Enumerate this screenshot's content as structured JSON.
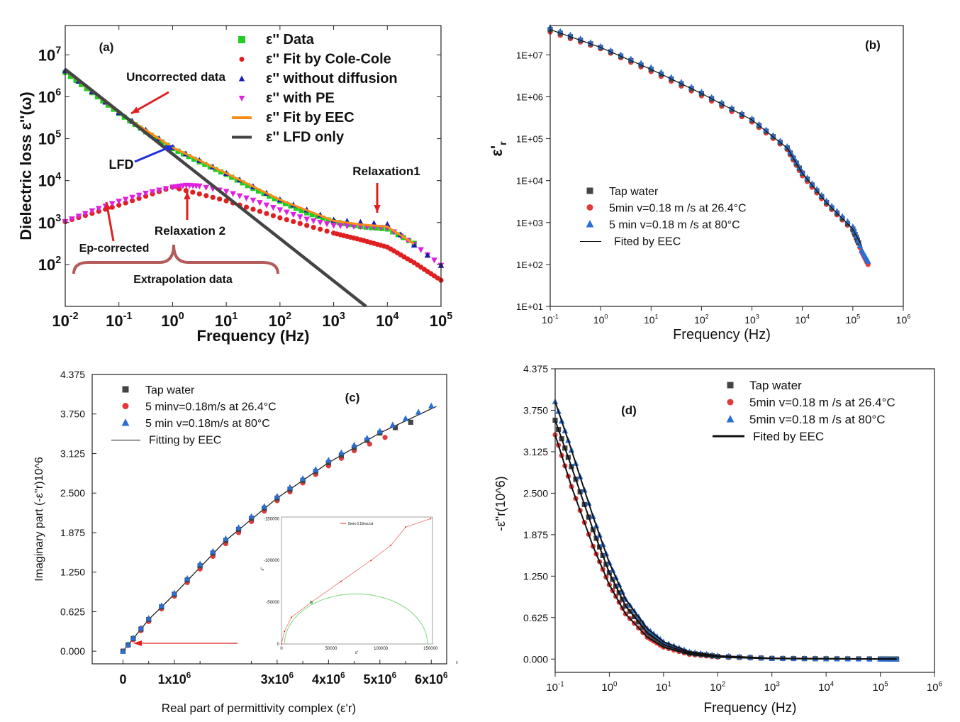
{
  "chart_data": [
    {
      "panel": "(a)",
      "type": "scatter",
      "xscale": "log",
      "yscale": "log",
      "xlim": [
        0.01,
        100000
      ],
      "ylim": [
        10,
        50000000
      ],
      "xlabel": "Frequency (Hz)",
      "ylabel": "Dielectric loss ε''(ω)",
      "xticks": [
        "10-2",
        "10-1",
        "100",
        "101",
        "102",
        "103",
        "104",
        "105"
      ],
      "yticks": [
        "102",
        "103",
        "104",
        "105",
        "106",
        "107"
      ],
      "legend": [
        "ε''  Data",
        "ε''  Fit by Cole-Cole",
        "ε''  without diffusion",
        "ε''  with PE",
        "ε''  Fit by EEC",
        "ε''  LFD only"
      ],
      "annotations": [
        "Uncorrected data",
        "LFD",
        "Relaxation1",
        "Relaxation 2",
        "Ep-corrected",
        "Extrapolation data"
      ],
      "series": [
        {
          "name": "ε''  Data",
          "color": "#22cc22",
          "marker": "square",
          "x": [
            0.01,
            0.0316,
            0.1,
            0.316,
            1,
            3.16,
            10,
            31.6,
            100,
            316,
            1000,
            3162,
            10000,
            31623
          ],
          "y": [
            3800000,
            1250000,
            400000,
            145000,
            58000,
            28000,
            14000,
            6500,
            3200,
            1700,
            1050,
            800,
            700,
            320
          ]
        },
        {
          "name": "ε''  Fit by Cole-Cole",
          "color": "#e02020",
          "marker": "circle",
          "x": [
            0.01,
            0.1,
            1,
            10,
            100,
            1000,
            3162,
            10000,
            31623,
            100000
          ],
          "y": [
            1050,
            2600,
            7000,
            3300,
            1300,
            560,
            390,
            260,
            110,
            42
          ]
        },
        {
          "name": "ε''  without diffusion",
          "color": "#1a1ab0",
          "marker": "triangle",
          "x": [
            0.01,
            0.1,
            1,
            10,
            100,
            1000,
            10000,
            100000
          ],
          "y": [
            4200000,
            420000,
            62000,
            15000,
            3500,
            1150,
            900,
            95
          ]
        },
        {
          "name": "ε''  with PE",
          "color": "#e020e0",
          "marker": "triangle-down",
          "x": [
            0.01,
            0.0316,
            0.1,
            0.316,
            1,
            1.8,
            3.16,
            10,
            31.6,
            100,
            316,
            1000,
            3162,
            10000,
            31623,
            100000
          ],
          "y": [
            1050,
            1900,
            3200,
            5000,
            7000,
            7700,
            7400,
            5500,
            3400,
            2000,
            1200,
            850,
            800,
            750,
            300,
            95
          ]
        },
        {
          "name": "ε''  Fit by EEC",
          "color": "#ff8c1a",
          "marker": "line",
          "x": [
            0.01,
            0.1,
            1,
            10,
            100,
            1000,
            3162,
            10000,
            31623
          ],
          "y": [
            4300000,
            420000,
            62000,
            15000,
            3500,
            1100,
            900,
            800,
            310
          ]
        },
        {
          "name": "ε''  LFD only",
          "color": "#444444",
          "marker": "line",
          "x": [
            0.01,
            4000
          ],
          "y": [
            4500000,
            10
          ]
        }
      ]
    },
    {
      "panel": "(b)",
      "type": "scatter",
      "xscale": "log",
      "yscale": "log",
      "xlim": [
        0.1,
        1000000
      ],
      "ylim": [
        10,
        50000000
      ],
      "xlabel": "Frequency (Hz)",
      "ylabel": "ε'r",
      "xticks": [
        "10-1",
        "100",
        "101",
        "102",
        "103",
        "104",
        "105",
        "106"
      ],
      "yticks": [
        "1E+01",
        "1E+02",
        "1E+03",
        "1E+04",
        "1E+05",
        "1E+06",
        "1E+07"
      ],
      "legend": [
        "Tap water",
        "5min v=0.18 m /s at 26.4°C",
        "5 min v=0.18 m /s at 80°C",
        "Fited by EEC"
      ],
      "series": [
        {
          "name": "Tap water",
          "color": "#444444",
          "marker": "square",
          "x": [
            0.1,
            1,
            10,
            100,
            1000,
            5000,
            10000,
            30000,
            100000,
            130000
          ],
          "y": [
            40000000,
            15000000,
            4500000,
            1200000,
            280000,
            60000,
            15000,
            3000,
            700,
            330
          ]
        },
        {
          "name": "5min v=0.18 m /s at 26.4°C",
          "color": "#e03a3a",
          "marker": "circle",
          "x": [
            0.1,
            1,
            10,
            100,
            1000,
            5000,
            10000,
            30000,
            100000,
            150000,
            200000
          ],
          "y": [
            35000000,
            14000000,
            4000000,
            1050000,
            250000,
            55000,
            13000,
            2700,
            650,
            200,
            100
          ]
        },
        {
          "name": "5 min v=0.18 m /s at 80°C",
          "color": "#2a6fd6",
          "marker": "triangle",
          "x": [
            0.1,
            1,
            10,
            100,
            1000,
            5000,
            10000,
            30000,
            100000,
            150000,
            200000
          ],
          "y": [
            45000000,
            16000000,
            5000000,
            1300000,
            300000,
            65000,
            16000,
            3300,
            800,
            220,
            120
          ]
        },
        {
          "name": "Fited by EEC",
          "color": "#111111",
          "marker": "line",
          "x": [
            0.1,
            1,
            10,
            100,
            1000,
            5000,
            10000,
            30000,
            100000,
            150000
          ],
          "y": [
            40000000,
            15000000,
            4500000,
            1200000,
            280000,
            60000,
            15000,
            3000,
            700,
            280
          ]
        }
      ]
    },
    {
      "panel": "(c)",
      "type": "scatter",
      "xlim": [
        -0.6,
        6.3
      ],
      "ylim": [
        -0.2,
        4.375
      ],
      "xlabel": "Real part of permittivity complex (ε'r)",
      "ylabel": "Imaginary part (-ε''r)10^6",
      "xticks": [
        "0",
        "1x10^6",
        "3x10^6",
        "4x10^6",
        "5x10^6",
        "6x10^6"
      ],
      "yticks": [
        "0.000",
        "0.625",
        "1.250",
        "1.875",
        "2.500",
        "3.125",
        "3.750",
        "4.375"
      ],
      "legend": [
        "Tap water",
        "5 minv=0.18m/s at 26.4°C",
        "5 min v=0.18m/s at 80°C",
        "Fitting by EEC"
      ],
      "inset": {
        "legend": "5min 0.18ms.txt",
        "ylabel": "ε''",
        "xlabel": "ε'",
        "xticks": [
          "0",
          "50000",
          "100000",
          "150000"
        ],
        "yticks": [
          "-150000",
          "-100000",
          "-50000",
          "0"
        ]
      },
      "series": [
        {
          "name": "Tap water",
          "color": "#444444",
          "marker": "square",
          "x": [
            0,
            0.2,
            0.5,
            1,
            1.5,
            2,
            2.5,
            3,
            3.5,
            4,
            4.5,
            5,
            5.6
          ],
          "y": [
            0,
            0.2,
            0.5,
            0.9,
            1.35,
            1.75,
            2.1,
            2.42,
            2.7,
            2.98,
            3.22,
            3.45,
            3.62
          ]
        },
        {
          "name": "5 minv=0.18m/s at 26.4°C",
          "color": "#e03a3a",
          "marker": "circle",
          "x": [
            0,
            0.2,
            0.5,
            1,
            1.5,
            2,
            2.5,
            3,
            3.5,
            4,
            4.5,
            5.1
          ],
          "y": [
            0,
            0.18,
            0.47,
            0.87,
            1.3,
            1.7,
            2.05,
            2.38,
            2.66,
            2.93,
            3.17,
            3.38
          ]
        },
        {
          "name": "5 min v=0.18m/s at 80°C",
          "color": "#2a6fd6",
          "marker": "triangle",
          "x": [
            0,
            0.2,
            0.5,
            1,
            1.5,
            2,
            2.5,
            3,
            3.5,
            4,
            4.5,
            5,
            5.5,
            6
          ],
          "y": [
            0,
            0.21,
            0.52,
            0.92,
            1.38,
            1.78,
            2.13,
            2.45,
            2.73,
            3.02,
            3.26,
            3.48,
            3.68,
            3.88
          ]
        },
        {
          "name": "Fitting by EEC",
          "color": "#111111",
          "marker": "line",
          "x": [
            0,
            0.5,
            1,
            2,
            3,
            4,
            5,
            6.1
          ],
          "y": [
            0,
            0.5,
            0.9,
            1.75,
            2.42,
            2.98,
            3.45,
            3.87
          ]
        }
      ]
    },
    {
      "panel": "(d)",
      "type": "scatter",
      "xscale": "log",
      "xlim": [
        0.1,
        1000000
      ],
      "ylim": [
        -0.2,
        4.375
      ],
      "xlabel": "Frequency (Hz)",
      "ylabel": "-ε''r(10^6)",
      "xticks": [
        "10-1",
        "100",
        "101",
        "102",
        "103",
        "104",
        "105",
        "106"
      ],
      "yticks": [
        "0.000",
        "0.625",
        "1.250",
        "1.875",
        "2.500",
        "3.125",
        "3.750",
        "4.375"
      ],
      "legend": [
        "Tap water",
        "5min v=0.18 m /s at 26.4°C",
        "5min v=0.18 m /s at  80°C",
        "Fited by EEC"
      ],
      "series": [
        {
          "name": "Tap water",
          "color": "#444444",
          "marker": "square",
          "x": [
            0.1,
            0.2,
            0.5,
            1,
            2,
            5,
            10,
            30,
            100,
            1000,
            10000,
            100000,
            200000
          ],
          "y": [
            3.6,
            2.9,
            1.95,
            1.3,
            0.8,
            0.4,
            0.22,
            0.09,
            0.04,
            0.01,
            0.005,
            0.002,
            0.001
          ]
        },
        {
          "name": "5min v=0.18 m /s at 26.4°C",
          "color": "#e03a3a",
          "marker": "circle",
          "x": [
            0.1,
            0.2,
            0.5,
            1,
            2,
            5,
            10,
            30,
            100,
            1000,
            10000,
            100000,
            200000
          ],
          "y": [
            3.38,
            2.6,
            1.7,
            1.12,
            0.68,
            0.33,
            0.18,
            0.07,
            0.03,
            0.008,
            0.004,
            0.001,
            0.001
          ]
        },
        {
          "name": "5min v=0.18 m /s at  80°C",
          "color": "#2a6fd6",
          "marker": "triangle",
          "x": [
            0.1,
            0.2,
            0.5,
            1,
            2,
            5,
            10,
            30,
            100,
            1000,
            10000,
            100000,
            200000
          ],
          "y": [
            3.88,
            3.15,
            2.15,
            1.45,
            0.9,
            0.46,
            0.26,
            0.11,
            0.05,
            0.012,
            0.006,
            0.002,
            0.001
          ]
        },
        {
          "name": "Fited by EEC",
          "color": "#111111",
          "marker": "line",
          "x": [
            0.1,
            0.2,
            0.5,
            1,
            2,
            5,
            10,
            30,
            100,
            1000,
            10000,
            100000,
            200000
          ],
          "y": [
            3.6,
            2.9,
            1.95,
            1.3,
            0.8,
            0.4,
            0.22,
            0.09,
            0.04,
            0.01,
            0.005,
            0.002,
            0.001
          ]
        }
      ]
    }
  ]
}
